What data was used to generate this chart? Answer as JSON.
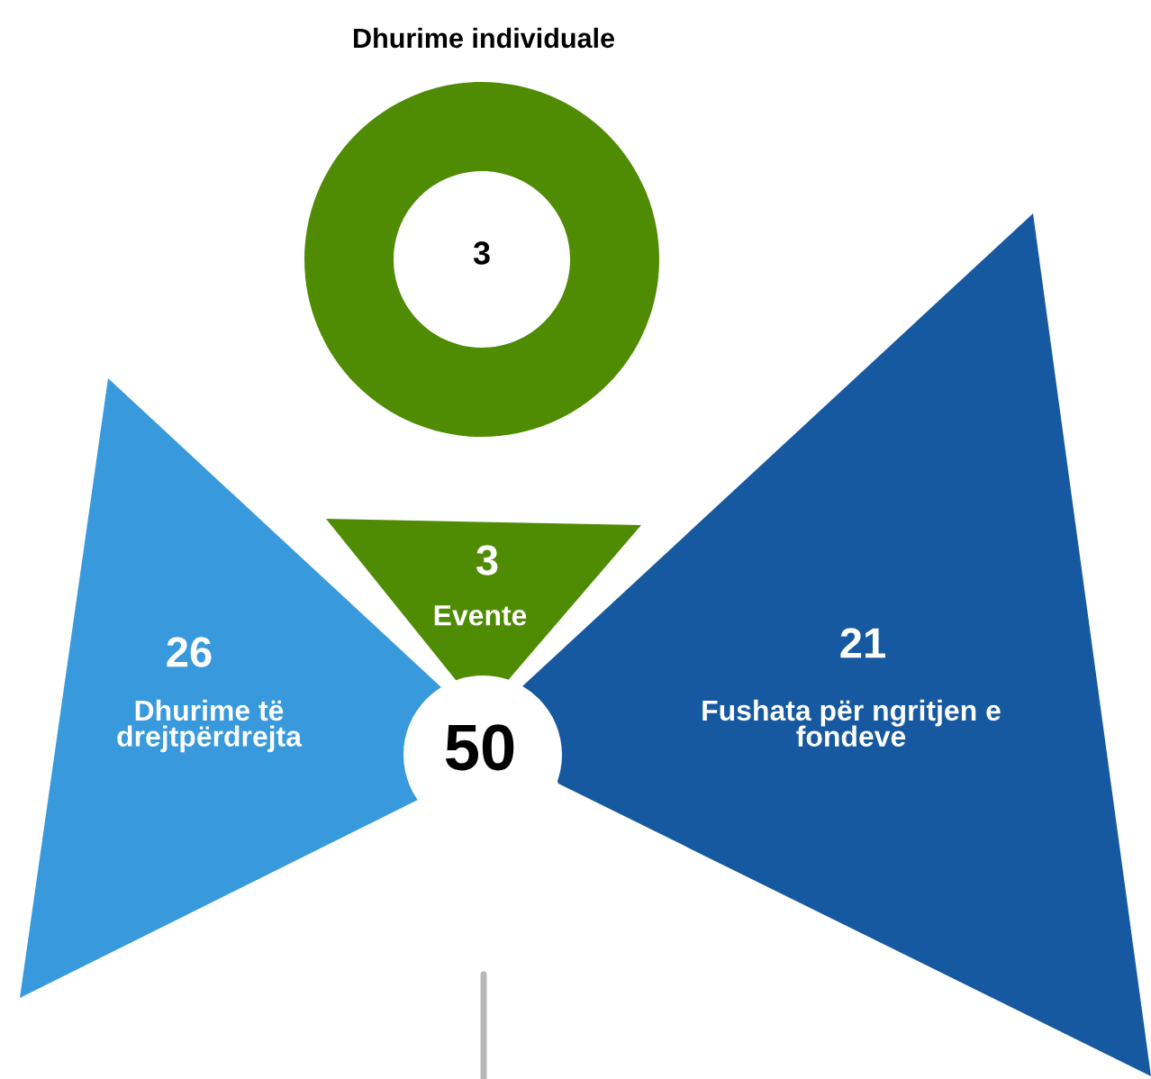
{
  "chart_data": [
    {
      "type": "other",
      "title": "Dhurime individuale",
      "values": [
        3
      ],
      "data_labels": true,
      "colors": [
        "#4f8c04"
      ]
    },
    {
      "type": "other",
      "categories": [
        "Dhurime të\ndrejtpërdrejta",
        "Evente",
        "Fushata për ngritjen e\nfondeve"
      ],
      "values": [
        26,
        3,
        21
      ],
      "data_labels": true,
      "colors": [
        "#3899dc",
        "#4f8c04",
        "#1759a0"
      ],
      "annotations": [
        "50"
      ]
    }
  ]
}
